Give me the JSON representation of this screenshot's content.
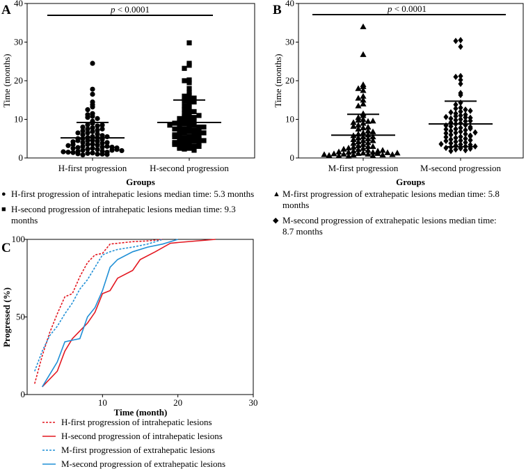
{
  "figure": {
    "panels": [
      "A",
      "B",
      "C"
    ]
  },
  "legend_A": [
    {
      "symbol": "●",
      "text": "H-first progression of intrahepatic lesions median time: 5.3 months"
    },
    {
      "symbol": "■",
      "text": "H-second progression of intrahepatic lesions median time: 9.3 months"
    }
  ],
  "legend_B": [
    {
      "symbol": "▲",
      "text": "M-first progression of extrahepatic lesions median time: 5.8 months"
    },
    {
      "symbol": "◆",
      "text": "M-second progression of extrahepatic lesions median time: 8.7 months"
    }
  ],
  "chart_data": [
    {
      "panel": "A",
      "type": "scatter",
      "xlabel": "Groups",
      "ylabel": "Time (months)",
      "ylim": [
        0,
        40
      ],
      "yticks": [
        "0",
        "10",
        "20",
        "30",
        "40"
      ],
      "categories": [
        "H-first progression",
        "H-second progression"
      ],
      "annotation": "p < 0.0001",
      "series": [
        {
          "name": "H-first progression",
          "marker": "circle",
          "median": 5.3,
          "mean": 5.2,
          "sd_upper": 9.2,
          "values": [
            24.5,
            17.8,
            16.5,
            14.5,
            13.8,
            13.2,
            12.5,
            11.5,
            11.2,
            10.8,
            10.5,
            10.2,
            9.5,
            9.0,
            8.6,
            8.3,
            8.0,
            7.8,
            7.5,
            7.2,
            7.0,
            6.8,
            6.5,
            6.2,
            6.0,
            5.8,
            5.5,
            5.3,
            5.2,
            5.0,
            4.8,
            4.6,
            4.5,
            4.3,
            4.0,
            3.8,
            3.6,
            3.5,
            3.3,
            3.0,
            2.8,
            2.7,
            2.5,
            2.3,
            2.2,
            2.0,
            1.8,
            1.7,
            1.5,
            1.3,
            1.2,
            1.0,
            0.8,
            5.0,
            4.5,
            3.0,
            2.5,
            2.0,
            1.5,
            1.0,
            3.5,
            4.0,
            2.8,
            2.2,
            1.6,
            1.1,
            0.9,
            5.5,
            6.5,
            7.5,
            8.5,
            4.2,
            3.2,
            2.6,
            1.9,
            1.4
          ]
        },
        {
          "name": "H-second progression",
          "marker": "square",
          "median": 9.3,
          "mean": 9.2,
          "sd_upper": 15.0,
          "values": [
            29.8,
            24.5,
            24.0,
            23.2,
            20.2,
            20.0,
            19.5,
            18.0,
            17.0,
            16.3,
            16.0,
            15.5,
            15.2,
            14.8,
            14.5,
            14.0,
            13.5,
            13.0,
            12.5,
            12.0,
            11.5,
            11.0,
            10.8,
            10.5,
            10.0,
            9.8,
            9.5,
            9.3,
            9.0,
            8.8,
            8.5,
            8.2,
            8.0,
            7.8,
            7.5,
            7.2,
            7.0,
            6.8,
            6.5,
            6.2,
            6.0,
            5.8,
            5.5,
            5.2,
            5.0,
            4.8,
            4.6,
            4.5,
            4.3,
            4.0,
            3.8,
            3.5,
            3.3,
            3.0,
            2.8,
            2.5,
            2.3,
            2.0,
            10.2,
            9.0,
            8.0,
            7.0,
            6.0,
            5.0,
            4.0,
            3.0,
            11.0,
            12.0,
            6.5,
            5.5,
            4.5,
            3.5,
            2.5,
            8.5,
            7.5
          ]
        }
      ]
    },
    {
      "panel": "B",
      "type": "scatter",
      "xlabel": "Groups",
      "ylabel": "Time (months)",
      "ylim": [
        0,
        40
      ],
      "yticks": [
        "0",
        "10",
        "20",
        "30",
        "40"
      ],
      "categories": [
        "M-first progression",
        "M-second progression"
      ],
      "annotation": "p < 0.0001",
      "series": [
        {
          "name": "M-first progression",
          "marker": "triangle",
          "median": 5.8,
          "mean": 5.9,
          "sd_upper": 11.3,
          "values": [
            34.0,
            26.8,
            19.0,
            18.5,
            18.0,
            17.5,
            16.0,
            15.5,
            15.0,
            14.0,
            13.5,
            11.5,
            11.0,
            10.5,
            10.0,
            9.8,
            9.5,
            9.2,
            9.0,
            8.5,
            8.0,
            7.8,
            7.5,
            7.0,
            6.5,
            6.2,
            6.0,
            5.8,
            5.5,
            5.2,
            5.0,
            4.8,
            4.5,
            4.2,
            4.0,
            3.8,
            3.5,
            3.2,
            3.0,
            2.8,
            2.5,
            2.2,
            2.0,
            1.8,
            1.5,
            1.3,
            1.2,
            1.0,
            0.8,
            0.6,
            0.5,
            1.5,
            1.2,
            1.0,
            0.8,
            0.6,
            1.8,
            1.4,
            1.1,
            0.9,
            0.7,
            2.3,
            2.0,
            1.6,
            1.3,
            0.9,
            3.0,
            2.6,
            4.5,
            5.5,
            6.8,
            8.2,
            9.6
          ]
        },
        {
          "name": "M-second progression",
          "marker": "diamond",
          "median": 8.7,
          "mean": 8.8,
          "sd_upper": 14.7,
          "sd_lower": 2.9,
          "values": [
            30.5,
            30.3,
            28.8,
            21.2,
            21.0,
            20.2,
            19.2,
            16.8,
            16.3,
            14.3,
            13.8,
            13.0,
            12.8,
            12.5,
            12.0,
            11.5,
            11.2,
            11.0,
            10.8,
            10.5,
            10.2,
            10.0,
            9.8,
            9.5,
            9.0,
            8.8,
            8.5,
            8.2,
            8.0,
            7.8,
            7.5,
            7.2,
            7.0,
            6.8,
            6.5,
            6.2,
            6.0,
            5.8,
            5.5,
            5.2,
            5.0,
            4.8,
            4.5,
            4.2,
            4.0,
            3.8,
            3.5,
            3.2,
            3.0,
            2.8,
            2.5,
            2.2,
            2.0,
            1.8,
            11.8,
            10.4,
            9.2,
            7.6,
            6.4,
            5.6,
            4.6,
            3.4,
            2.6,
            10.6,
            8.4,
            6.6,
            4.4,
            3.0,
            2.4,
            12.2,
            9.6,
            7.4,
            5.4,
            3.6
          ]
        }
      ]
    },
    {
      "panel": "C",
      "type": "line",
      "xlabel": "Time (month)",
      "ylabel": "Progressed (%)",
      "xlim": [
        0,
        30
      ],
      "ylim": [
        0,
        100
      ],
      "xticks": [
        "10",
        "20",
        "30"
      ],
      "yticks": [
        "0",
        "50",
        "100"
      ],
      "series": [
        {
          "name": "H-first progression of intrahepatic lesions",
          "color": "#e3161f",
          "dash": true,
          "x": [
            1,
            2,
            3,
            4,
            5,
            6,
            7,
            8,
            9,
            10,
            11,
            12,
            14,
            16,
            18
          ],
          "y": [
            7,
            25,
            40,
            52,
            63,
            65,
            76,
            85,
            90,
            91,
            97,
            97.5,
            98.5,
            99,
            100
          ]
        },
        {
          "name": "H-second progression of intrahepatic lesions",
          "color": "#e3161f",
          "dash": false,
          "x": [
            2,
            4,
            5,
            6,
            7,
            8,
            9,
            10,
            11,
            12,
            14,
            15,
            17,
            19,
            20,
            25
          ],
          "y": [
            5,
            15,
            28,
            36,
            41,
            46,
            53,
            65,
            67,
            75,
            80,
            87,
            92,
            97.5,
            98,
            100
          ]
        },
        {
          "name": "M-first progression of extrahepatic lesions",
          "color": "#1f8fd6",
          "dash": true,
          "x": [
            1,
            2,
            3,
            4,
            5,
            6,
            7,
            8,
            9,
            10,
            11,
            12,
            14,
            16,
            18
          ],
          "y": [
            15,
            28,
            38,
            44,
            52,
            59,
            68,
            74,
            82,
            90,
            92,
            93.5,
            95,
            97,
            100
          ]
        },
        {
          "name": "M-second progression of extrahepatic lesions",
          "color": "#1f8fd6",
          "dash": false,
          "x": [
            2,
            4,
            5,
            6,
            7,
            8,
            9,
            10,
            11,
            12,
            14,
            16,
            18,
            20
          ],
          "y": [
            5,
            21,
            34,
            35,
            36,
            50,
            56,
            67,
            82,
            87,
            92,
            95,
            97,
            100
          ]
        }
      ]
    }
  ]
}
